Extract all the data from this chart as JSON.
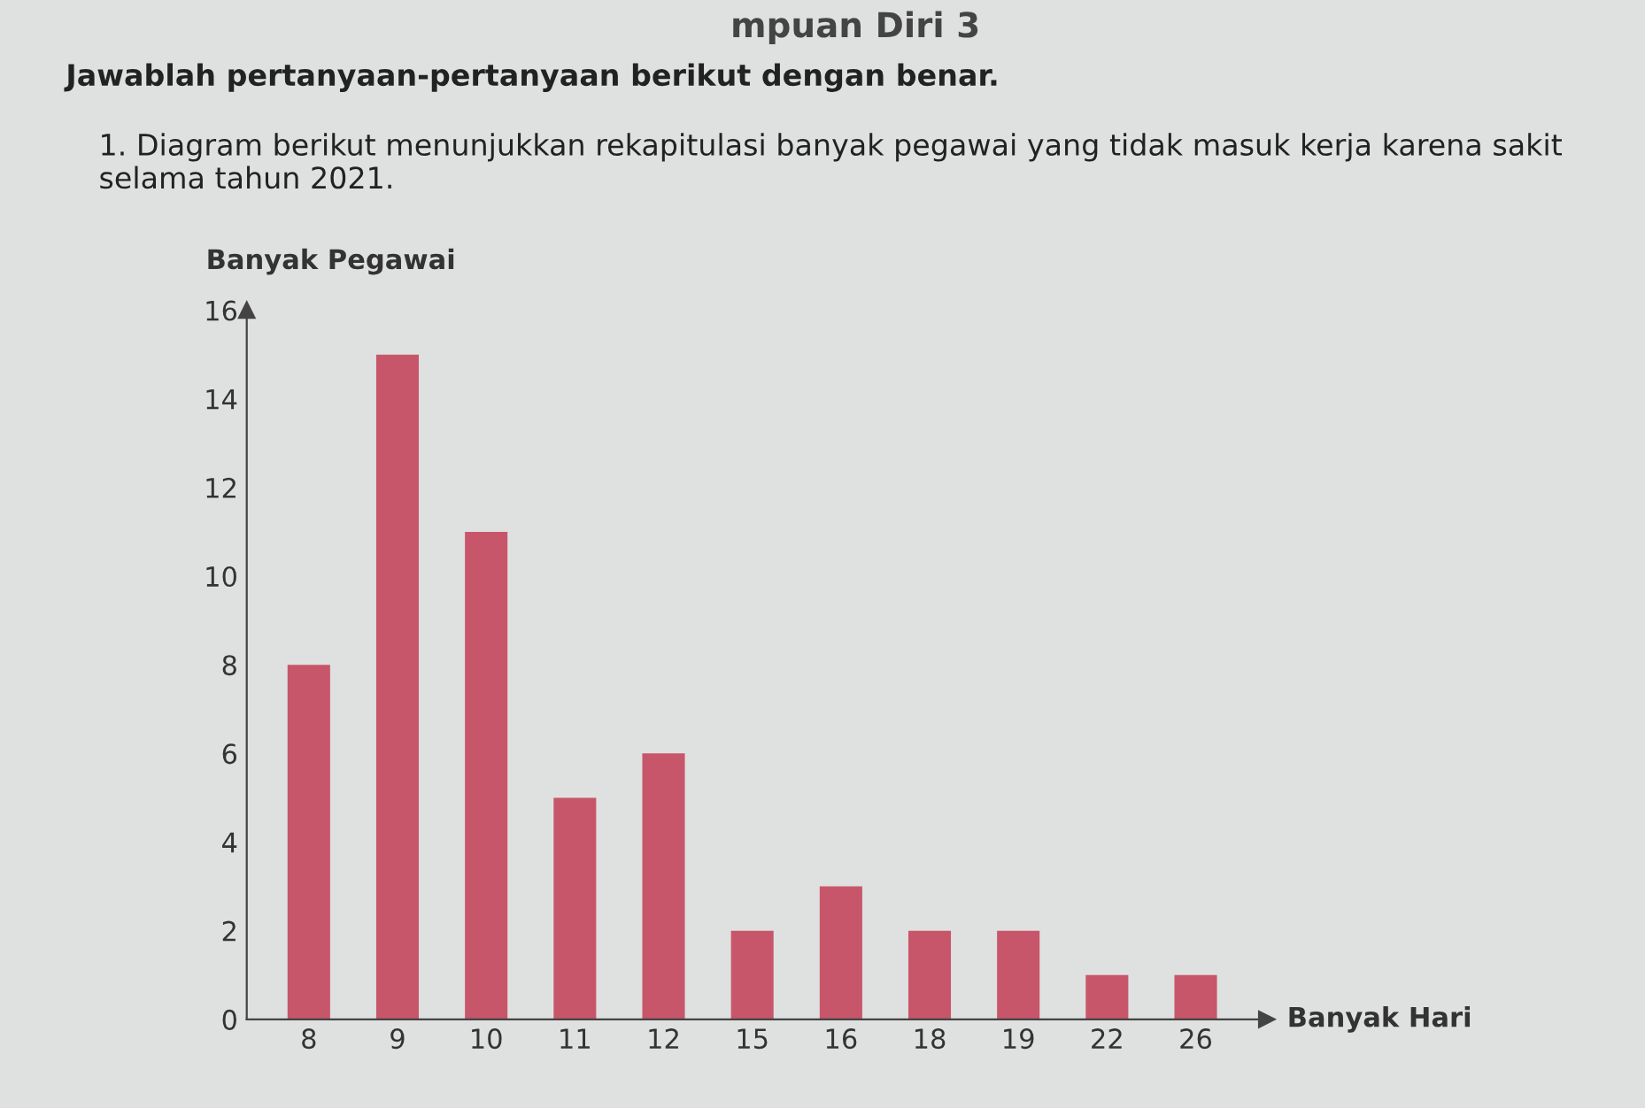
{
  "chart_data": {
    "type": "bar",
    "title": "Jawablah pertanyaan-pertanyaan berikut dengan benar.",
    "subtitle": "1. Diagram berikut menunjukkan rekapitulasi banyak pegawai yang tidak masuk kerja karena sakit selama tahun 2021.",
    "annotations": [
      "mpuan Diri 3"
    ],
    "ylabel": "Banyak Pegawai",
    "xlabel": "Banyak Hari",
    "categories": [
      "8",
      "9",
      "10",
      "11",
      "12",
      "15",
      "16",
      "18",
      "19",
      "22",
      "26"
    ],
    "values": [
      8,
      15,
      11,
      5,
      6,
      2,
      3,
      2,
      2,
      1,
      1
    ],
    "color": "#c8566a",
    "ylim": [
      0,
      16
    ],
    "yticks": [
      0,
      2,
      4,
      6,
      8,
      10,
      12,
      14,
      16
    ],
    "grid": false
  }
}
